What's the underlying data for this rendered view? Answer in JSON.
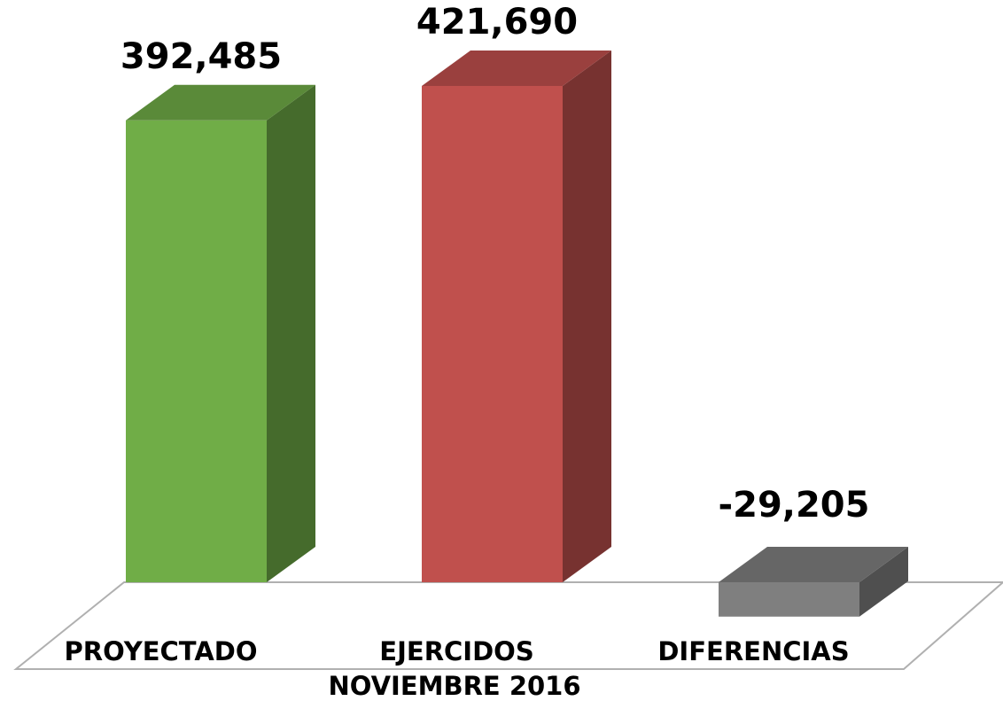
{
  "chart_data": {
    "type": "bar3d",
    "categories": [
      "PROYECTADO",
      "EJERCIDOS",
      "DIFERENCIAS"
    ],
    "values": [
      392485,
      421690,
      -29205
    ],
    "value_labels": [
      "392,485",
      "421,690",
      "-29,205"
    ],
    "colors": [
      "#70ad47",
      "#c0504d",
      "#7f7f7f"
    ],
    "x_label": "NOVIEMBRE 2016"
  }
}
